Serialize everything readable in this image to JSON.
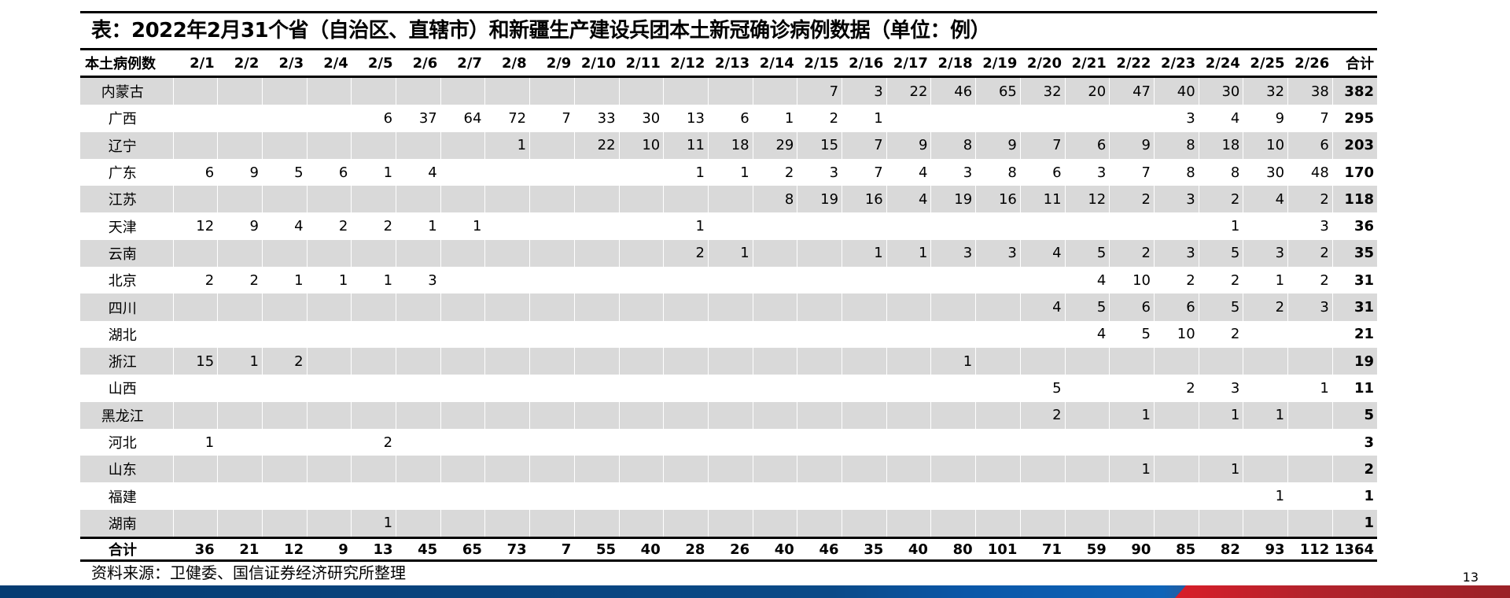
{
  "title": "表：2022年2月31个省（自治区、直辖市）和新疆生产建设兵团本土新冠确诊病例数据（单位：例）",
  "table": {
    "row_header": "本土病例数",
    "columns": [
      "2/1",
      "2/2",
      "2/3",
      "2/4",
      "2/5",
      "2/6",
      "2/7",
      "2/8",
      "2/9",
      "2/10",
      "2/11",
      "2/12",
      "2/13",
      "2/14",
      "2/15",
      "2/16",
      "2/17",
      "2/18",
      "2/19",
      "2/20",
      "2/21",
      "2/22",
      "2/23",
      "2/24",
      "2/25",
      "2/26",
      "合计"
    ],
    "rows": [
      {
        "label": "内蒙古",
        "values": [
          "",
          "",
          "",
          "",
          "",
          "",
          "",
          "",
          "",
          "",
          "",
          "",
          "",
          "",
          "7",
          "3",
          "22",
          "46",
          "65",
          "32",
          "20",
          "47",
          "40",
          "30",
          "32",
          "38",
          "382"
        ]
      },
      {
        "label": "广西",
        "values": [
          "",
          "",
          "",
          "",
          "6",
          "37",
          "64",
          "72",
          "7",
          "33",
          "30",
          "13",
          "6",
          "1",
          "2",
          "1",
          "",
          "",
          "",
          "",
          "",
          "",
          "3",
          "4",
          "9",
          "7",
          "295"
        ]
      },
      {
        "label": "辽宁",
        "values": [
          "",
          "",
          "",
          "",
          "",
          "",
          "",
          "1",
          "",
          "22",
          "10",
          "11",
          "18",
          "29",
          "15",
          "7",
          "9",
          "8",
          "9",
          "7",
          "6",
          "9",
          "8",
          "18",
          "10",
          "6",
          "203"
        ]
      },
      {
        "label": "广东",
        "values": [
          "6",
          "9",
          "5",
          "6",
          "1",
          "4",
          "",
          "",
          "",
          "",
          "",
          "1",
          "1",
          "2",
          "3",
          "7",
          "4",
          "3",
          "8",
          "6",
          "3",
          "7",
          "8",
          "8",
          "30",
          "48",
          "170"
        ]
      },
      {
        "label": "江苏",
        "values": [
          "",
          "",
          "",
          "",
          "",
          "",
          "",
          "",
          "",
          "",
          "",
          "",
          "",
          "8",
          "19",
          "16",
          "4",
          "19",
          "16",
          "11",
          "12",
          "2",
          "3",
          "2",
          "4",
          "2",
          "118"
        ]
      },
      {
        "label": "天津",
        "values": [
          "12",
          "9",
          "4",
          "2",
          "2",
          "1",
          "1",
          "",
          "",
          "",
          "",
          "1",
          "",
          "",
          "",
          "",
          "",
          "",
          "",
          "",
          "",
          "",
          "",
          "1",
          "",
          "3",
          "36"
        ]
      },
      {
        "label": "云南",
        "values": [
          "",
          "",
          "",
          "",
          "",
          "",
          "",
          "",
          "",
          "",
          "",
          "2",
          "1",
          "",
          "",
          "1",
          "1",
          "3",
          "3",
          "4",
          "5",
          "2",
          "3",
          "5",
          "3",
          "2",
          "35"
        ]
      },
      {
        "label": "北京",
        "values": [
          "2",
          "2",
          "1",
          "1",
          "1",
          "3",
          "",
          "",
          "",
          "",
          "",
          "",
          "",
          "",
          "",
          "",
          "",
          "",
          "",
          "",
          "4",
          "10",
          "2",
          "2",
          "1",
          "2",
          "31"
        ]
      },
      {
        "label": "四川",
        "values": [
          "",
          "",
          "",
          "",
          "",
          "",
          "",
          "",
          "",
          "",
          "",
          "",
          "",
          "",
          "",
          "",
          "",
          "",
          "",
          "4",
          "5",
          "6",
          "6",
          "5",
          "2",
          "3",
          "31"
        ]
      },
      {
        "label": "湖北",
        "values": [
          "",
          "",
          "",
          "",
          "",
          "",
          "",
          "",
          "",
          "",
          "",
          "",
          "",
          "",
          "",
          "",
          "",
          "",
          "",
          "",
          "4",
          "5",
          "10",
          "2",
          "",
          "",
          "21"
        ]
      },
      {
        "label": "浙江",
        "values": [
          "15",
          "1",
          "2",
          "",
          "",
          "",
          "",
          "",
          "",
          "",
          "",
          "",
          "",
          "",
          "",
          "",
          "",
          "1",
          "",
          "",
          "",
          "",
          "",
          "",
          "",
          "",
          "19"
        ]
      },
      {
        "label": "山西",
        "values": [
          "",
          "",
          "",
          "",
          "",
          "",
          "",
          "",
          "",
          "",
          "",
          "",
          "",
          "",
          "",
          "",
          "",
          "",
          "",
          "5",
          "",
          "",
          "2",
          "3",
          "",
          "1",
          "11"
        ]
      },
      {
        "label": "黑龙江",
        "values": [
          "",
          "",
          "",
          "",
          "",
          "",
          "",
          "",
          "",
          "",
          "",
          "",
          "",
          "",
          "",
          "",
          "",
          "",
          "",
          "2",
          "",
          "1",
          "",
          "1",
          "1",
          "",
          "5"
        ]
      },
      {
        "label": "河北",
        "values": [
          "1",
          "",
          "",
          "",
          "2",
          "",
          "",
          "",
          "",
          "",
          "",
          "",
          "",
          "",
          "",
          "",
          "",
          "",
          "",
          "",
          "",
          "",
          "",
          "",
          "",
          "",
          "3"
        ]
      },
      {
        "label": "山东",
        "values": [
          "",
          "",
          "",
          "",
          "",
          "",
          "",
          "",
          "",
          "",
          "",
          "",
          "",
          "",
          "",
          "",
          "",
          "",
          "",
          "",
          "",
          "1",
          "",
          "1",
          "",
          "",
          "2"
        ]
      },
      {
        "label": "福建",
        "values": [
          "",
          "",
          "",
          "",
          "",
          "",
          "",
          "",
          "",
          "",
          "",
          "",
          "",
          "",
          "",
          "",
          "",
          "",
          "",
          "",
          "",
          "",
          "",
          "",
          "1",
          "",
          "1"
        ]
      },
      {
        "label": "湖南",
        "values": [
          "",
          "",
          "",
          "",
          "1",
          "",
          "",
          "",
          "",
          "",
          "",
          "",
          "",
          "",
          "",
          "",
          "",
          "",
          "",
          "",
          "",
          "",
          "",
          "",
          "",
          "",
          "1"
        ]
      }
    ],
    "total": {
      "label": "合计",
      "values": [
        "36",
        "21",
        "12",
        "9",
        "13",
        "45",
        "65",
        "73",
        "7",
        "55",
        "40",
        "28",
        "26",
        "40",
        "46",
        "35",
        "40",
        "80",
        "101",
        "71",
        "59",
        "90",
        "85",
        "82",
        "93",
        "112",
        "1364"
      ]
    }
  },
  "source": "资料来源：卫健委、国信证券经济研究所整理",
  "page_number": "13",
  "colors": {
    "stripe": "#d9d9d9",
    "band_blue": "#0a4a88",
    "band_red": "#b3232c"
  }
}
